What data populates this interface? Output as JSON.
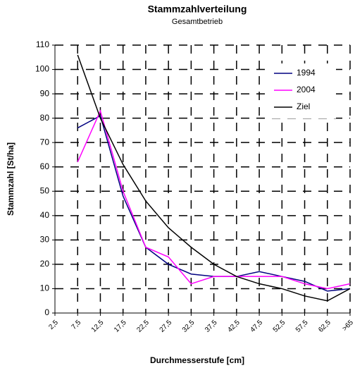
{
  "chart_data": {
    "type": "line",
    "title": "Stammzahlverteilung",
    "subtitle": "Gesamtbetrieb",
    "x_label": "Durchmesserstufe [cm]",
    "y_label": "Stammzahl [St/ha]",
    "categories": [
      "2,5",
      "7,5",
      "12,5",
      "17,5",
      "22,5",
      "27,5",
      "32,5",
      "37,5",
      "42,5",
      "47,5",
      "52,5",
      "57,5",
      "62,5",
      ">65"
    ],
    "series": [
      {
        "name": "1994",
        "color": "#000080",
        "values": [
          null,
          76,
          81,
          48,
          27,
          20,
          16,
          15,
          15,
          17,
          15,
          13,
          9,
          10
        ]
      },
      {
        "name": "2004",
        "color": "#ff00ff",
        "values": [
          null,
          62,
          83,
          50,
          27,
          23,
          12,
          15,
          15,
          15,
          15,
          12,
          10,
          12
        ]
      },
      {
        "name": "Ziel",
        "color": "#000000",
        "values": [
          null,
          106,
          80,
          61,
          46,
          35,
          27,
          20,
          15,
          12,
          10,
          7,
          5,
          10
        ]
      }
    ],
    "ylim": [
      0,
      110
    ],
    "yticks": [
      0,
      10,
      20,
      30,
      40,
      50,
      60,
      70,
      80,
      90,
      100,
      110
    ],
    "grid": true,
    "legend": "upper right"
  }
}
